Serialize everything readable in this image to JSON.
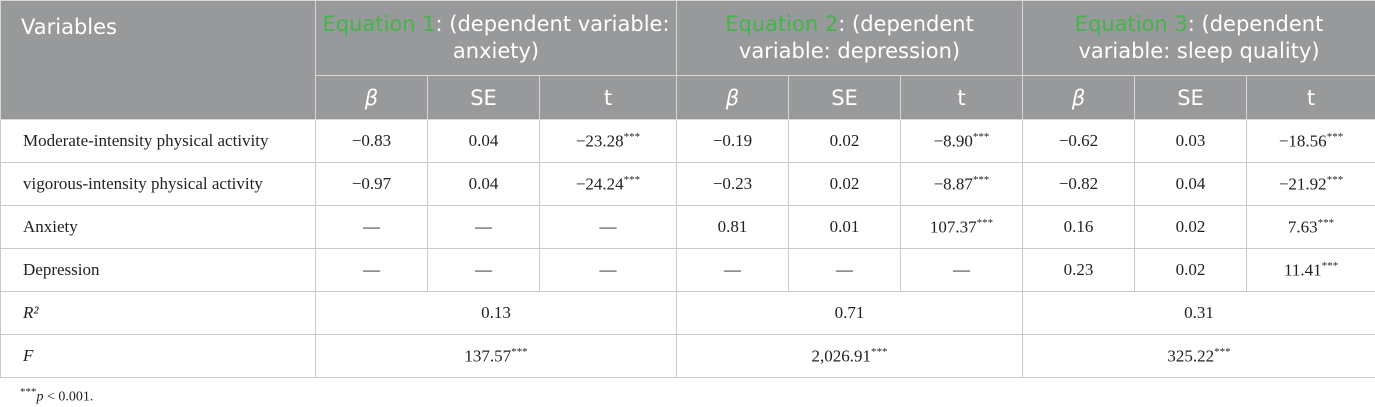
{
  "header": {
    "variables": "Variables",
    "groups": [
      {
        "eq": "Equation 1",
        "rest": ": (dependent variable: anxiety)"
      },
      {
        "eq": "Equation 2",
        "rest": ": (dependent variable: depression)"
      },
      {
        "eq": "Equation 3",
        "rest": ": (dependent variable: sleep quality)"
      }
    ],
    "subheaders": [
      "β",
      "SE",
      "t",
      "β",
      "SE",
      "t",
      "β",
      "SE",
      "t"
    ]
  },
  "rows": [
    {
      "label": "Moderate-intensity physical activity",
      "cells": [
        {
          "v": "−0.83"
        },
        {
          "v": "0.04"
        },
        {
          "v": "−23.28",
          "sig": "***"
        },
        {
          "v": "−0.19"
        },
        {
          "v": "0.02"
        },
        {
          "v": "−8.90",
          "sig": "***"
        },
        {
          "v": "−0.62"
        },
        {
          "v": "0.03"
        },
        {
          "v": "−18.56",
          "sig": "***"
        }
      ]
    },
    {
      "label": "vigorous-intensity physical activity",
      "cells": [
        {
          "v": "−0.97"
        },
        {
          "v": "0.04"
        },
        {
          "v": "−24.24",
          "sig": "***"
        },
        {
          "v": "−0.23"
        },
        {
          "v": "0.02"
        },
        {
          "v": "−8.87",
          "sig": "***"
        },
        {
          "v": "−0.82"
        },
        {
          "v": "0.04"
        },
        {
          "v": "−21.92",
          "sig": "***"
        }
      ]
    },
    {
      "label": "Anxiety",
      "cells": [
        {
          "v": "—"
        },
        {
          "v": "—"
        },
        {
          "v": "—"
        },
        {
          "v": "0.81"
        },
        {
          "v": "0.01"
        },
        {
          "v": "107.37",
          "sig": "***"
        },
        {
          "v": "0.16"
        },
        {
          "v": "0.02"
        },
        {
          "v": "7.63",
          "sig": "***"
        }
      ]
    },
    {
      "label": "Depression",
      "cells": [
        {
          "v": "—"
        },
        {
          "v": "—"
        },
        {
          "v": "—"
        },
        {
          "v": "—"
        },
        {
          "v": "—"
        },
        {
          "v": "—"
        },
        {
          "v": "0.23"
        },
        {
          "v": "0.02"
        },
        {
          "v": "11.41",
          "sig": "***"
        }
      ]
    }
  ],
  "summary": [
    {
      "label": "R²",
      "cells": [
        {
          "v": "0.13"
        },
        {
          "v": "0.71"
        },
        {
          "v": "0.31"
        }
      ]
    },
    {
      "label": "F",
      "cells": [
        {
          "v": "137.57",
          "sig": "***"
        },
        {
          "v": "2,026.91",
          "sig": "***"
        },
        {
          "v": "325.22",
          "sig": "***"
        }
      ]
    }
  ],
  "footnote": {
    "sig": "***",
    "p": "p",
    "rest": " < 0.001."
  }
}
